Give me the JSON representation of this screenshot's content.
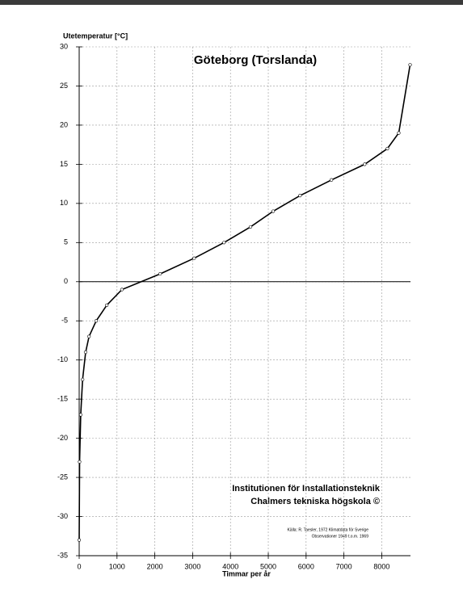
{
  "chart_data": {
    "type": "line",
    "title": "Göteborg (Torslanda)",
    "y_label": "Utetemperatur [°C]",
    "x_label": "Timmar per år",
    "annotations": [
      "Institutionen för Installationsteknik",
      "Chalmers tekniska högskola   ©"
    ],
    "source": [
      "Källa:  R. Taesler, 1972  Klimatdata för Sverige",
      "Observationer 1949 t.o.m. 1969"
    ],
    "x": [
      0,
      10,
      40,
      90,
      170,
      260,
      450,
      730,
      1130,
      2140,
      3040,
      3830,
      4530,
      5130,
      5840,
      6670,
      7550,
      8150,
      8450,
      8750
    ],
    "series": [
      {
        "color": "#000000",
        "values": [
          -33,
          -23,
          -17,
          -12.5,
          -9,
          -7,
          -5,
          -3,
          -1,
          1,
          3,
          5,
          7,
          9,
          11,
          13,
          15,
          17,
          19,
          27.7
        ]
      }
    ],
    "xlim": [
      0,
      8760
    ],
    "ylim": [
      -35,
      30
    ],
    "xticks": [
      0,
      1000,
      2000,
      3000,
      4000,
      5000,
      6000,
      7000,
      8000
    ],
    "yticks": [
      -35,
      -30,
      -25,
      -20,
      -15,
      -10,
      -5,
      0,
      5,
      10,
      15,
      20,
      25,
      30
    ],
    "grid": true
  }
}
